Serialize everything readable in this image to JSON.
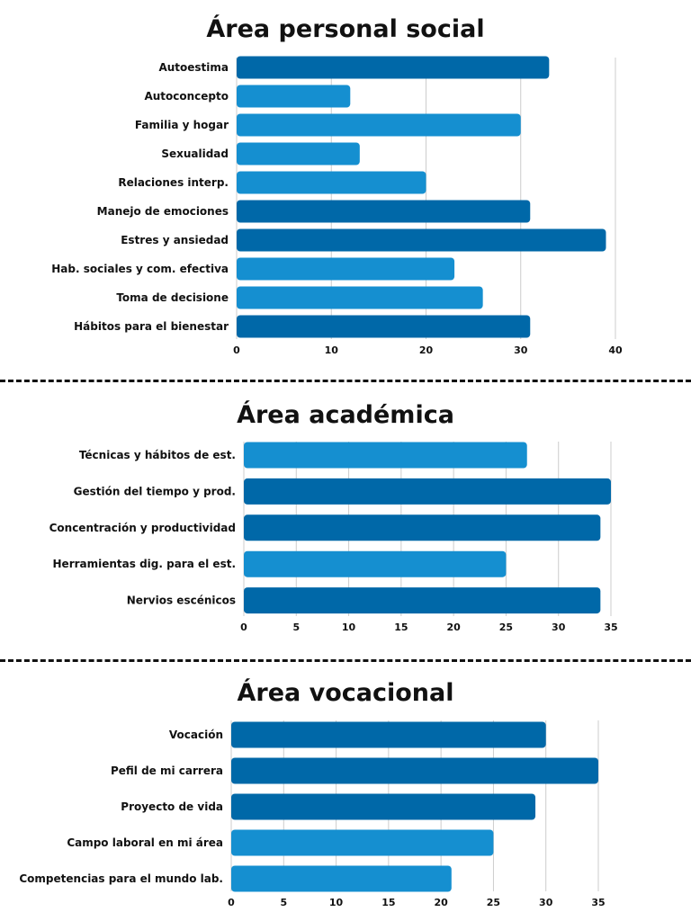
{
  "colors": {
    "dark": "#0068a8",
    "light": "#158fd0",
    "grid": "#cccccc",
    "text": "#111111"
  },
  "chart_data": [
    {
      "type": "bar",
      "orientation": "horizontal",
      "title": "Área personal social",
      "categories": [
        "Autoestima",
        "Autoconcepto",
        "Familia y hogar",
        "Sexualidad",
        "Relaciones interp.",
        "Manejo de emociones",
        "Estres y ansiedad",
        "Hab. sociales y com. efectiva",
        "Toma de decisione",
        "Hábitos para el bienestar"
      ],
      "values": [
        33,
        12,
        30,
        13,
        20,
        31,
        39,
        23,
        26,
        31
      ],
      "shades": [
        "dark",
        "light",
        "light",
        "light",
        "light",
        "dark",
        "dark",
        "light",
        "light",
        "dark"
      ],
      "xticks": [
        0,
        10,
        20,
        30,
        40
      ],
      "xlim": [
        0,
        40
      ],
      "grid": true
    },
    {
      "type": "bar",
      "orientation": "horizontal",
      "title": "Área académica",
      "categories": [
        "Técnicas y hábitos de est.",
        "Gestión del tiempo y prod.",
        "Concentración y productividad",
        "Herramientas dig. para el est.",
        "Nervios escénicos"
      ],
      "values": [
        27,
        35,
        34,
        25,
        34
      ],
      "shades": [
        "light",
        "dark",
        "dark",
        "light",
        "dark"
      ],
      "xticks": [
        0,
        5,
        10,
        15,
        20,
        25,
        30,
        35
      ],
      "xlim": [
        0,
        35
      ],
      "grid": true
    },
    {
      "type": "bar",
      "orientation": "horizontal",
      "title": "Área vocacional",
      "categories": [
        "Vocación",
        "Pefil de mi carrera",
        "Proyecto de vida",
        "Campo laboral en mi área",
        "Competencias para el mundo lab."
      ],
      "values": [
        30,
        35,
        29,
        25,
        21
      ],
      "shades": [
        "dark",
        "dark",
        "dark",
        "light",
        "light"
      ],
      "xticks": [
        0,
        5,
        10,
        15,
        20,
        25,
        30,
        35
      ],
      "xlim": [
        0,
        35
      ],
      "grid": true
    }
  ]
}
